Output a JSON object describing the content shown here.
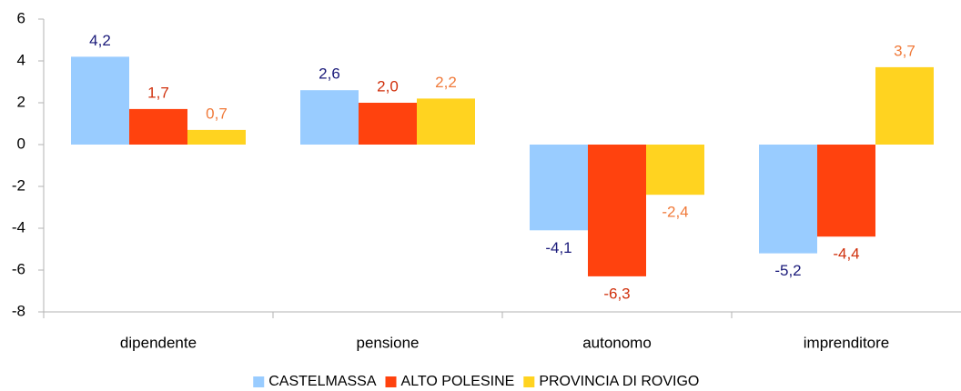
{
  "chart_data": {
    "type": "bar",
    "categories": [
      "dipendente",
      "pensione",
      "autonomo",
      "imprenditore"
    ],
    "series": [
      {
        "name": "CASTELMASSA",
        "color": "#99ccff",
        "label_color": "#1a1a7a",
        "values": [
          4.2,
          2.6,
          -4.1,
          -5.2
        ],
        "value_labels": [
          "4,2",
          "2,6",
          "-4,1",
          "-5,2"
        ]
      },
      {
        "name": "ALTO POLESINE",
        "color": "#ff420e",
        "label_color": "#d0300c",
        "values": [
          1.7,
          2.0,
          -6.3,
          -4.4
        ],
        "value_labels": [
          "1,7",
          "2,0",
          "-6,3",
          "-4,4"
        ]
      },
      {
        "name": "PROVINCIA DI ROVIGO",
        "color": "#ffd320",
        "label_color": "#f07a3a",
        "values": [
          0.7,
          2.2,
          -2.4,
          3.7
        ],
        "value_labels": [
          "0,7",
          "2,2",
          "-2,4",
          "3,7"
        ]
      }
    ],
    "ylim": [
      -8,
      6
    ],
    "yticks": [
      -8,
      -6,
      -4,
      -2,
      0,
      2,
      4,
      6
    ],
    "grid": false,
    "legend": "bottom"
  }
}
